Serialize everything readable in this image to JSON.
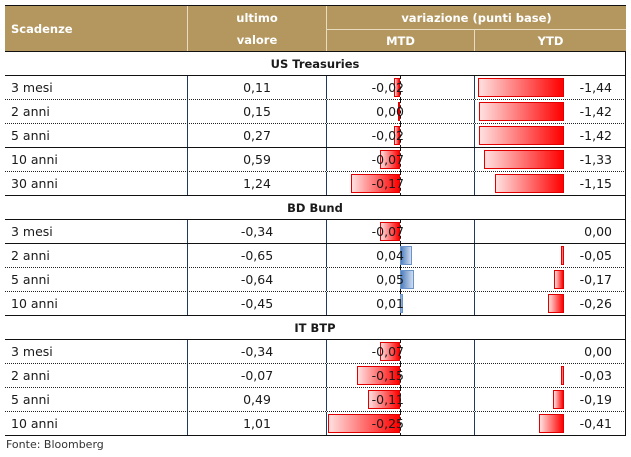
{
  "header": {
    "col_name": "Scadenze",
    "col_last_line1": "ultimo",
    "col_last_line2": "valore",
    "col_change": "variazione (punti base)",
    "col_mtd": "MTD",
    "col_ytd": "YTD"
  },
  "colors": {
    "header_bg": "#b3975f",
    "negative_bar": "#ff0000",
    "positive_bar": "#4f7fbf"
  },
  "sections": [
    {
      "title": "US Treasuries",
      "rows": [
        {
          "name": "3 mesi",
          "last": "0,11",
          "mtd": "-0,02",
          "ytd": "-1,44",
          "mtd_value": -0.02,
          "ytd_value": -1.44
        },
        {
          "name": "2 anni",
          "last": "0,15",
          "mtd": "0,00",
          "ytd": "-1,42",
          "mtd_value": 0.0,
          "ytd_value": -1.42
        },
        {
          "name": "5 anni",
          "last": "0,27",
          "mtd": "-0,02",
          "ytd": "-1,42",
          "mtd_value": -0.02,
          "ytd_value": -1.42
        },
        {
          "name": "10 anni",
          "last": "0,59",
          "mtd": "-0,07",
          "ytd": "-1,33",
          "mtd_value": -0.07,
          "ytd_value": -1.33
        },
        {
          "name": "30 anni",
          "last": "1,24",
          "mtd": "-0,17",
          "ytd": "-1,15",
          "mtd_value": -0.17,
          "ytd_value": -1.15
        }
      ]
    },
    {
      "title": "BD Bund",
      "rows": [
        {
          "name": "3 mesi",
          "last": "-0,34",
          "mtd": "-0,07",
          "ytd": "0,00",
          "mtd_value": -0.07,
          "ytd_value": 0.0
        },
        {
          "name": "2 anni",
          "last": "-0,65",
          "mtd": "0,04",
          "ytd": "-0,05",
          "mtd_value": 0.04,
          "ytd_value": -0.05
        },
        {
          "name": "5 anni",
          "last": "-0,64",
          "mtd": "0,05",
          "ytd": "-0,17",
          "mtd_value": 0.05,
          "ytd_value": -0.17
        },
        {
          "name": "10 anni",
          "last": "-0,45",
          "mtd": "0,01",
          "ytd": "-0,26",
          "mtd_value": 0.01,
          "ytd_value": -0.26
        }
      ]
    },
    {
      "title": "IT BTP",
      "rows": [
        {
          "name": "3 mesi",
          "last": "-0,34",
          "mtd": "-0,07",
          "ytd": "0,00",
          "mtd_value": -0.07,
          "ytd_value": 0.0
        },
        {
          "name": "2 anni",
          "last": "-0,07",
          "mtd": "-0,15",
          "ytd": "-0,03",
          "mtd_value": -0.15,
          "ytd_value": -0.03
        },
        {
          "name": "5 anni",
          "last": "0,49",
          "mtd": "-0,11",
          "ytd": "-0,19",
          "mtd_value": -0.11,
          "ytd_value": -0.19
        },
        {
          "name": "10 anni",
          "last": "1,01",
          "mtd": "-0,25",
          "ytd": "-0,41",
          "mtd_value": -0.25,
          "ytd_value": -0.41
        }
      ]
    }
  ],
  "source": "Fonte: Bloomberg"
}
